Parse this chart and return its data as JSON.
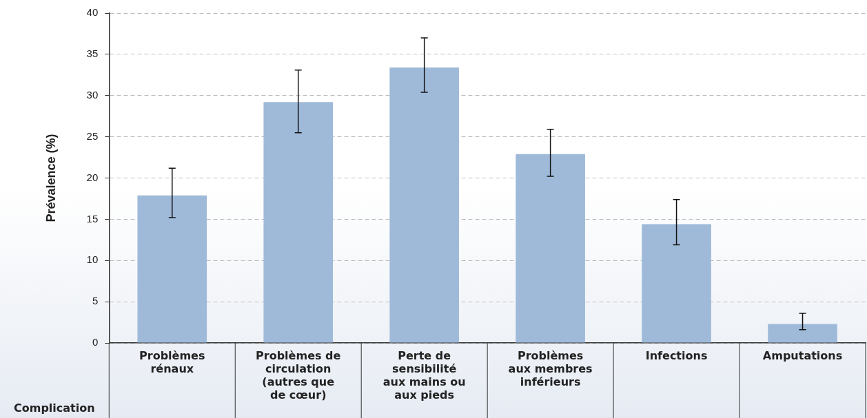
{
  "chart_data": {
    "type": "bar",
    "ylabel": "Prévalence (%)",
    "xlabel": "Complication",
    "categories": [
      "Problèmes rénaux",
      "Problèmes de circulation (autres que de cœur)",
      "Perte de sensibilité aux mains ou aux pieds",
      "Problèmes aux membres inférieurs",
      "Infections",
      "Amputations"
    ],
    "values": [
      17.9,
      29.2,
      33.4,
      22.9,
      14.4,
      2.3
    ],
    "errors": [
      [
        15.2,
        21.2
      ],
      [
        25.5,
        33.1
      ],
      [
        30.4,
        37.0
      ],
      [
        20.2,
        25.9
      ],
      [
        11.9,
        17.4
      ],
      [
        1.6,
        3.6
      ]
    ],
    "color": "#9fbad9",
    "ylim": [
      0,
      40
    ],
    "yticks": [
      0,
      5,
      10,
      15,
      20,
      25,
      30,
      35,
      40
    ],
    "grid": "y",
    "legend": false
  }
}
